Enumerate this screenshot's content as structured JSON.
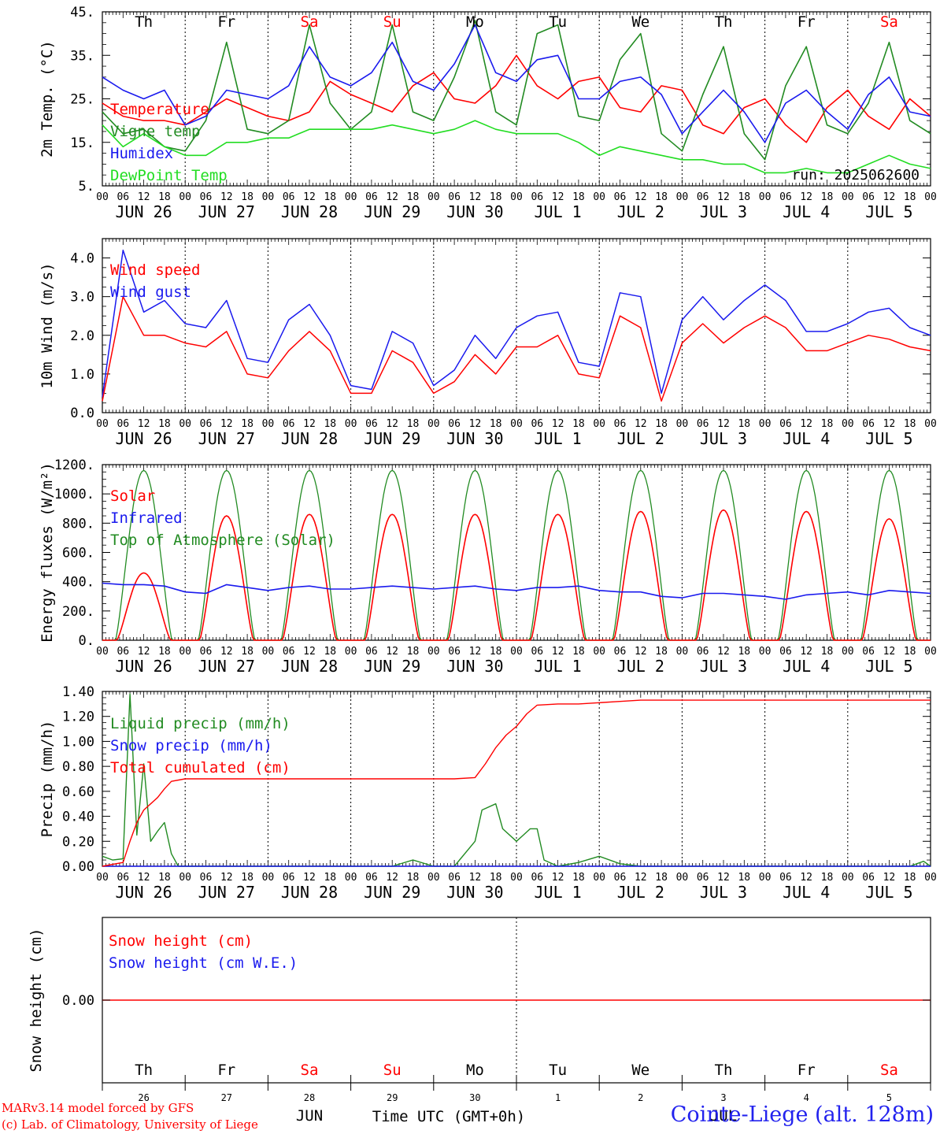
{
  "footer": {
    "credit_line1": "MARv3.14 model forced by GFS",
    "credit_line2": "(c) Lab. of Climatology, University of Liege",
    "station": "Cointe-Liege (alt. 128m)",
    "time_axis_label": "Time UTC (GMT+0h)",
    "month_label_1": "JUN",
    "month_label_2": "JUL"
  },
  "colors": {
    "red": "#ff0000",
    "dark_green": "#228b22",
    "light_green": "#22dd22",
    "blue": "#1a1aee",
    "axis": "#000000",
    "weekend_day": "#ff0000"
  },
  "chart_data": [
    {
      "id": "temp",
      "type": "line",
      "ylabel": "2m Temp. (°C)",
      "ylim": [
        5,
        45
      ],
      "yticks": [
        "5.",
        "15.",
        "25.",
        "35.",
        "45."
      ],
      "days": [
        "Th",
        "Fr",
        "Sa",
        "Su",
        "Mo",
        "Tu",
        "We",
        "Th",
        "Fr",
        "Sa"
      ],
      "run_label": "run: 2025062600",
      "x_hours": [
        0,
        6,
        12,
        18,
        24,
        30,
        36,
        42,
        48,
        54,
        60,
        66,
        72,
        78,
        84,
        90,
        96,
        102,
        108,
        114,
        120,
        126,
        132,
        138,
        144,
        150,
        156,
        162,
        168,
        174,
        180,
        186,
        192,
        198,
        204,
        210,
        216,
        222,
        228,
        234,
        240
      ],
      "series": [
        {
          "name": "Temperature",
          "color": "red",
          "values": [
            24,
            21,
            20,
            20,
            19,
            22,
            25,
            23,
            21,
            20,
            22,
            29,
            26,
            24,
            22,
            28,
            31,
            25,
            24,
            28,
            35,
            28,
            25,
            29,
            30,
            23,
            22,
            28,
            27,
            19,
            17,
            23,
            25,
            19,
            15,
            23,
            27,
            21,
            18,
            25,
            21
          ]
        },
        {
          "name": "Vigne temp",
          "color": "dark_green",
          "values": [
            22,
            17,
            18,
            14,
            13,
            20,
            38,
            18,
            17,
            20,
            42,
            24,
            18,
            22,
            42,
            22,
            20,
            30,
            43,
            22,
            19,
            40,
            42,
            21,
            20,
            34,
            40,
            17,
            13,
            26,
            37,
            17,
            11,
            28,
            37,
            19,
            17,
            24,
            38,
            20,
            17
          ]
        },
        {
          "name": "Humidex",
          "color": "blue",
          "values": [
            30,
            27,
            25,
            27,
            19,
            21,
            27,
            26,
            25,
            28,
            37,
            30,
            28,
            31,
            38,
            29,
            27,
            33,
            42,
            31,
            29,
            34,
            35,
            25,
            25,
            29,
            30,
            26,
            17,
            22,
            27,
            22,
            15,
            24,
            27,
            22,
            18,
            26,
            30,
            22,
            21
          ]
        },
        {
          "name": "DewPoint Temp",
          "color": "light_green",
          "values": [
            19,
            14,
            17,
            14,
            12,
            12,
            15,
            15,
            16,
            16,
            18,
            18,
            18,
            18,
            19,
            18,
            17,
            18,
            20,
            18,
            17,
            17,
            17,
            15,
            12,
            14,
            13,
            12,
            11,
            11,
            10,
            10,
            8,
            8,
            9,
            8,
            8,
            10,
            12,
            10,
            9
          ]
        }
      ]
    },
    {
      "id": "wind",
      "type": "line",
      "ylabel": "10m Wind (m/s)",
      "ylim": [
        0,
        4.5
      ],
      "yticks": [
        "0.0",
        "1.0",
        "2.0",
        "3.0",
        "4.0"
      ],
      "x_hours": [
        0,
        6,
        12,
        18,
        24,
        30,
        36,
        42,
        48,
        54,
        60,
        66,
        72,
        78,
        84,
        90,
        96,
        102,
        108,
        114,
        120,
        126,
        132,
        138,
        144,
        150,
        156,
        162,
        168,
        174,
        180,
        186,
        192,
        198,
        204,
        210,
        216,
        222,
        228,
        234,
        240
      ],
      "series": [
        {
          "name": "Wind speed",
          "color": "red",
          "values": [
            0.3,
            3.0,
            2.0,
            2.0,
            1.8,
            1.7,
            2.1,
            1.0,
            0.9,
            1.6,
            2.1,
            1.6,
            0.5,
            0.5,
            1.6,
            1.3,
            0.5,
            0.8,
            1.5,
            1.0,
            1.7,
            1.7,
            2.0,
            1.0,
            0.9,
            2.5,
            2.2,
            0.3,
            1.8,
            2.3,
            1.8,
            2.2,
            2.5,
            2.2,
            1.6,
            1.6,
            1.8,
            2.0,
            1.9,
            1.7,
            1.6
          ]
        },
        {
          "name": "Wind gust",
          "color": "blue",
          "values": [
            0.4,
            4.2,
            2.6,
            2.9,
            2.3,
            2.2,
            2.9,
            1.4,
            1.3,
            2.4,
            2.8,
            2.0,
            0.7,
            0.6,
            2.1,
            1.8,
            0.7,
            1.1,
            2.0,
            1.4,
            2.2,
            2.5,
            2.6,
            1.3,
            1.2,
            3.1,
            3.0,
            0.5,
            2.4,
            3.0,
            2.4,
            2.9,
            3.3,
            2.9,
            2.1,
            2.1,
            2.3,
            2.6,
            2.7,
            2.2,
            2.0
          ]
        }
      ]
    },
    {
      "id": "energy",
      "type": "line",
      "ylabel": "Energy fluxes (W/m²)",
      "ylim": [
        0,
        1200
      ],
      "yticks": [
        "0.",
        "200.",
        "400.",
        "600.",
        "800.",
        "1000.",
        "1200."
      ],
      "series": [
        {
          "name": "Solar",
          "color": "red",
          "daily_peaks": [
            460,
            850,
            860,
            860,
            860,
            860,
            880,
            890,
            880,
            830
          ]
        },
        {
          "name": "Infrared",
          "color": "blue",
          "x_hours": [
            0,
            6,
            12,
            18,
            24,
            30,
            36,
            42,
            48,
            54,
            60,
            66,
            72,
            78,
            84,
            90,
            96,
            102,
            108,
            114,
            120,
            126,
            132,
            138,
            144,
            150,
            156,
            162,
            168,
            174,
            180,
            186,
            192,
            198,
            204,
            210,
            216,
            222,
            228,
            234,
            240
          ],
          "values": [
            390,
            380,
            380,
            370,
            330,
            320,
            380,
            360,
            340,
            360,
            370,
            350,
            350,
            360,
            370,
            360,
            350,
            360,
            370,
            350,
            340,
            360,
            360,
            370,
            340,
            330,
            330,
            300,
            290,
            320,
            320,
            310,
            300,
            280,
            310,
            320,
            330,
            310,
            340,
            330,
            320
          ]
        },
        {
          "name": "Top of Atmosphere (Solar)",
          "color": "dark_green",
          "daily_peaks": [
            1160,
            1160,
            1160,
            1160,
            1160,
            1160,
            1160,
            1160,
            1160,
            1160
          ]
        }
      ]
    },
    {
      "id": "precip",
      "type": "line",
      "ylabel": "Precip (mm/h)",
      "ylim": [
        0,
        1.4
      ],
      "yticks": [
        "0.00",
        "0.20",
        "0.40",
        "0.60",
        "0.80",
        "1.00",
        "1.20",
        "1.40"
      ],
      "series": [
        {
          "name": "Liquid precip (mm/h)",
          "color": "dark_green",
          "x_hours": [
            0,
            3,
            6,
            8,
            10,
            12,
            14,
            16,
            18,
            20,
            22,
            24,
            30,
            36,
            42,
            48,
            54,
            60,
            66,
            72,
            78,
            84,
            90,
            96,
            102,
            108,
            110,
            114,
            116,
            120,
            122,
            124,
            126,
            128,
            132,
            138,
            144,
            150,
            156,
            162,
            168,
            174,
            180,
            186,
            192,
            198,
            204,
            210,
            216,
            222,
            228,
            234,
            238,
            240
          ],
          "values": [
            0.08,
            0.05,
            0.06,
            1.38,
            0.25,
            0.82,
            0.2,
            0.28,
            0.35,
            0.1,
            0.0,
            0.0,
            0.0,
            0.0,
            0.0,
            0.0,
            0.0,
            0.0,
            0.0,
            0.0,
            0.0,
            0.0,
            0.05,
            0.0,
            0.0,
            0.2,
            0.45,
            0.5,
            0.3,
            0.2,
            0.25,
            0.3,
            0.3,
            0.05,
            0.0,
            0.03,
            0.08,
            0.02,
            0.0,
            0.0,
            0.0,
            0.0,
            0.0,
            0.0,
            0.0,
            0.0,
            0.0,
            0.0,
            0.0,
            0.0,
            0.0,
            0.0,
            0.04,
            0.0
          ]
        },
        {
          "name": "Snow precip (mm/h)",
          "color": "blue",
          "x_hours": [
            0,
            240
          ],
          "values": [
            0,
            0
          ]
        },
        {
          "name": "Total cumulated (cm)",
          "color": "red",
          "x_hours": [
            0,
            6,
            8,
            10,
            12,
            14,
            16,
            18,
            20,
            24,
            48,
            72,
            96,
            102,
            108,
            111,
            114,
            117,
            120,
            123,
            126,
            132,
            138,
            144,
            150,
            156,
            240
          ],
          "values": [
            0,
            0.03,
            0.2,
            0.35,
            0.45,
            0.5,
            0.55,
            0.62,
            0.68,
            0.7,
            0.7,
            0.7,
            0.7,
            0.7,
            0.71,
            0.82,
            0.95,
            1.05,
            1.12,
            1.22,
            1.29,
            1.3,
            1.3,
            1.31,
            1.32,
            1.33,
            1.33
          ]
        }
      ]
    },
    {
      "id": "snow",
      "type": "line",
      "ylabel": "Snow height (cm)",
      "yticks": [
        "0.00"
      ],
      "series": [
        {
          "name": "Snow height (cm)",
          "color": "red",
          "x_hours": [
            0,
            240
          ],
          "values": [
            0,
            0
          ]
        },
        {
          "name": "Snow height (cm W.E.)",
          "color": "blue",
          "x_hours": [
            0,
            240
          ],
          "values": [
            0,
            0
          ]
        }
      ]
    }
  ],
  "date_axis": {
    "hour_ticks": [
      "00",
      "06",
      "12",
      "18"
    ],
    "end_tick": "00",
    "date_labels": [
      "JUN 26",
      "JUN 27",
      "JUN 28",
      "JUN 29",
      "JUN 30",
      "JUL  1",
      "JUL  2",
      "JUL  3",
      "JUL  4",
      "JUL  5"
    ],
    "bottom_days": [
      "Th",
      "Fr",
      "Sa",
      "Su",
      "Mo",
      "Tu",
      "We",
      "Th",
      "Fr",
      "Sa"
    ],
    "bottom_day_numbers": [
      "26",
      "27",
      "28",
      "29",
      "30",
      "1",
      "2",
      "3",
      "4",
      "5"
    ],
    "weekend_indices": [
      2,
      3,
      9
    ]
  }
}
